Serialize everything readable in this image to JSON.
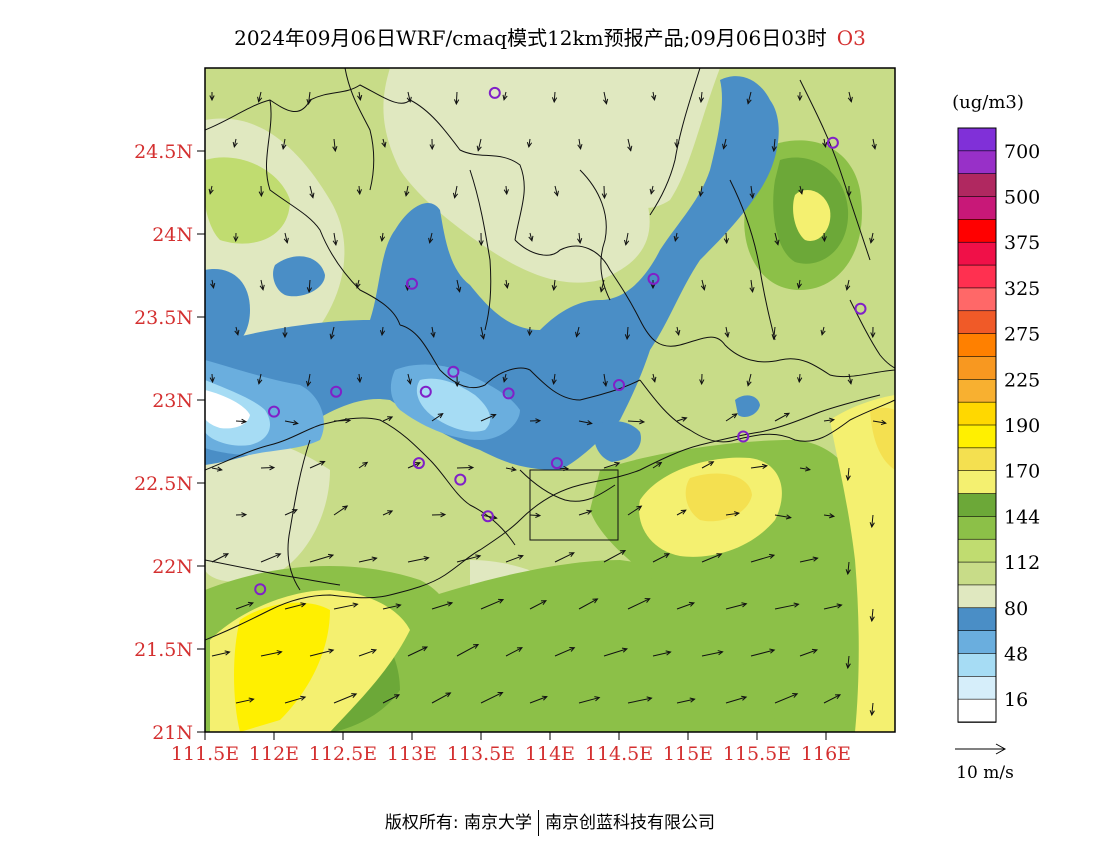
{
  "header": {
    "title": "2024年09月06日WRF/cmaq模式12km预报产品;09月06日03时",
    "species": "O3"
  },
  "map": {
    "lat_ticks": [
      "24.5N",
      "24N",
      "23.5N",
      "23N",
      "22.5N",
      "22N",
      "21.5N",
      "21N"
    ],
    "lat_values": [
      24.5,
      24.0,
      23.5,
      23.0,
      22.5,
      22.0,
      21.5,
      21.0
    ],
    "lon_ticks": [
      "111.5E",
      "112E",
      "112.5E",
      "113E",
      "113.5E",
      "114E",
      "114.5E",
      "115E",
      "115.5E",
      "116E"
    ],
    "lon_values": [
      111.5,
      112.0,
      112.5,
      113.0,
      113.5,
      114.0,
      114.5,
      115.0,
      115.5,
      116.0
    ],
    "lon_range": [
      111.5,
      116.5
    ],
    "lat_range": [
      21.0,
      25.0
    ],
    "tick_label_color": "#d43030"
  },
  "legend": {
    "unit": "(ug/m3)",
    "colors": [
      "#ffffff",
      "#d6eefa",
      "#a6dcf4",
      "#6aaede",
      "#4a8ec6",
      "#e0e8c0",
      "#c8dc88",
      "#c0dc70",
      "#8cc048",
      "#6ca838",
      "#f4f070",
      "#f4e050",
      "#fff000",
      "#ffd800",
      "#f8b030",
      "#f89820",
      "#ff8000",
      "#f05a28",
      "#ff6868",
      "#ff3050",
      "#f01048",
      "#ff0000",
      "#c81878",
      "#b02860",
      "#9830c8",
      "#8030d8"
    ],
    "labels": [
      "16",
      "48",
      "80",
      "112",
      "144",
      "170",
      "190",
      "225",
      "275",
      "325",
      "375",
      "500",
      "700"
    ]
  },
  "wind_legend": {
    "label": "10 m/s"
  },
  "stations": [
    {
      "lon": 113.6,
      "lat": 24.85
    },
    {
      "lon": 116.05,
      "lat": 24.55
    },
    {
      "lon": 113.0,
      "lat": 23.7
    },
    {
      "lon": 114.75,
      "lat": 23.73
    },
    {
      "lon": 116.25,
      "lat": 23.55
    },
    {
      "lon": 112.45,
      "lat": 23.05
    },
    {
      "lon": 112.0,
      "lat": 22.93
    },
    {
      "lon": 113.3,
      "lat": 23.17
    },
    {
      "lon": 113.1,
      "lat": 23.05
    },
    {
      "lon": 113.7,
      "lat": 23.04
    },
    {
      "lon": 114.5,
      "lat": 23.09
    },
    {
      "lon": 115.4,
      "lat": 22.78
    },
    {
      "lon": 113.05,
      "lat": 22.62
    },
    {
      "lon": 113.35,
      "lat": 22.52
    },
    {
      "lon": 114.05,
      "lat": 22.62
    },
    {
      "lon": 113.55,
      "lat": 22.3
    },
    {
      "lon": 111.9,
      "lat": 21.86
    }
  ],
  "footer": {
    "left": "版权所有: 南京大学",
    "right": "南京创蓝科技有限公司"
  }
}
